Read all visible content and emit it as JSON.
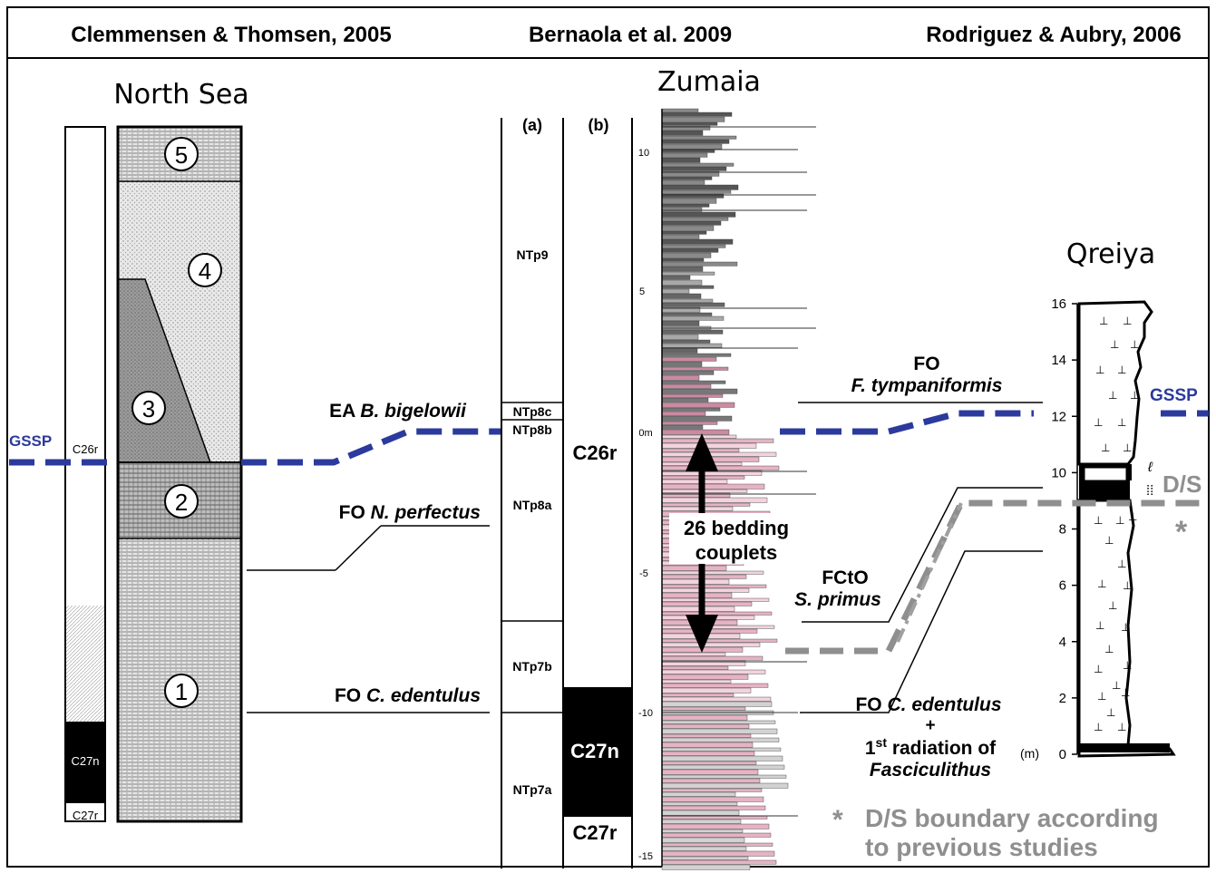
{
  "header": {
    "left": "Clemmensen & Thomsen, 2005",
    "center": "Bernaola et al. 2009",
    "right": "Rodriguez & Aubry, 2006"
  },
  "north_sea": {
    "title": "North Sea",
    "magnetochrons": [
      "C26r",
      "C27n",
      "C27r"
    ],
    "units": [
      "5",
      "4",
      "3",
      "2",
      "1"
    ]
  },
  "left_labels": {
    "gssp": "GSSP",
    "ea_prefix": "EA ",
    "ea_species": "B. bigelowii",
    "fo_np_prefix": "FO ",
    "fo_np_species": "N. perfectus",
    "fo_ce_prefix": "FO ",
    "fo_ce_species": "C. edentulus"
  },
  "zumaia": {
    "title": "Zumaia",
    "col_a": "(a)",
    "col_b": "(b)",
    "zones": [
      "NTp9",
      "NTp8c",
      "NTp8b",
      "NTp8a",
      "NTp7b",
      "NTp7a"
    ],
    "chrons": [
      "C26r",
      "C27n",
      "C27r"
    ],
    "scale_ticks": [
      "10",
      "5",
      "0m",
      "-5",
      "-10",
      "-15"
    ],
    "couplets_line1": "26 bedding",
    "couplets_line2": "couplets"
  },
  "qreiya": {
    "title": "Qreiya",
    "axis_ticks": [
      "16",
      "14",
      "12",
      "10",
      "8",
      "6",
      "4",
      "2",
      "0"
    ],
    "axis_unit": "(m)",
    "gssp": "GSSP",
    "ds": "D/S",
    "asterisk": "*"
  },
  "right_labels": {
    "fo_line1": "FO",
    "fo_species": "F. tympaniformis",
    "fcto_line1": "FCtO",
    "fcto_species": "S. primus",
    "fo_ce_prefix": "FO ",
    "fo_ce_species": "C. edentulus",
    "plus": "+",
    "radiation_st": "st",
    "radiation_text": " radiation of",
    "radiation_num": "1",
    "fasciculithus": "Fasciculithus"
  },
  "footnote": {
    "star": "*",
    "line1": "D/S boundary according",
    "line2": "to previous studies"
  },
  "colors": {
    "gssp_blue": "#2b3a9c",
    "ds_gray": "#8f8f8f",
    "pink": "#e6b3c4",
    "dark_gray": "#555555",
    "mid_gray": "#9a9a9a"
  }
}
